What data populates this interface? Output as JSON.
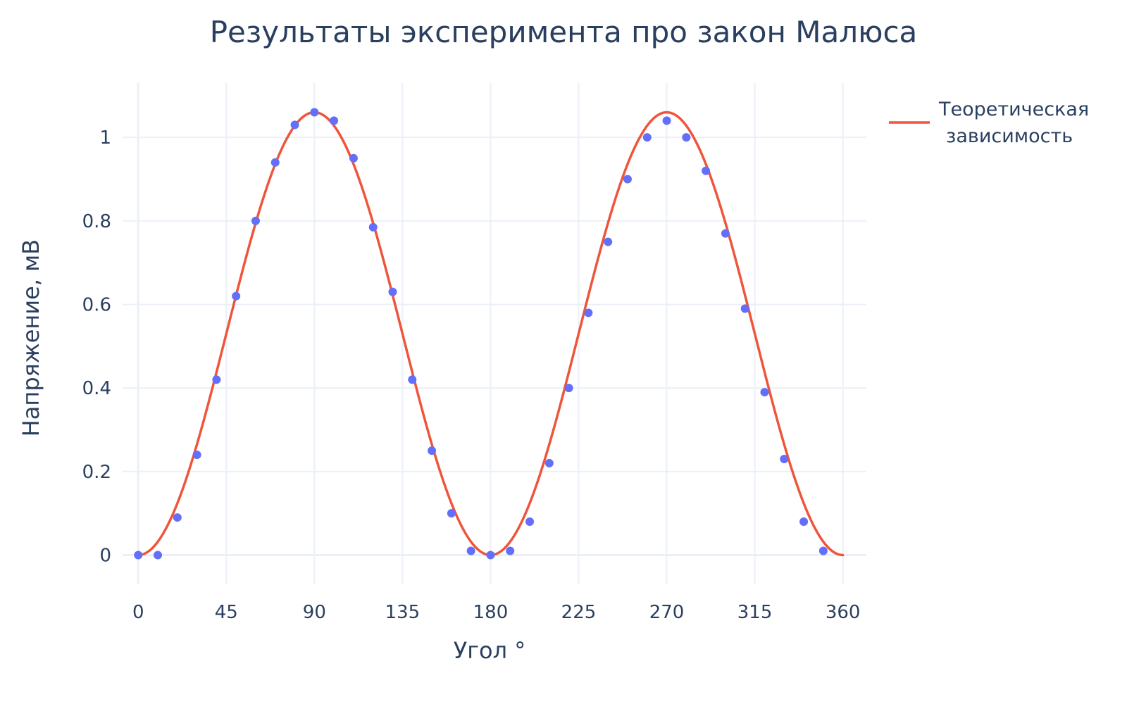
{
  "chart_data": {
    "type": "scatter",
    "title": "Результаты эксперимента про закон Малюса",
    "xlabel": "Угол °",
    "ylabel": "Напряжение, мВ",
    "xlim": [
      -8,
      372
    ],
    "ylim": [
      -0.07,
      1.13
    ],
    "x_ticks": [
      0,
      45,
      90,
      135,
      180,
      225,
      270,
      315,
      360
    ],
    "y_ticks": [
      0,
      0.2,
      0.4,
      0.6,
      0.8,
      1
    ],
    "tick_labels_x": [
      "0",
      "45",
      "90",
      "135",
      "180",
      "225",
      "270",
      "315",
      "360"
    ],
    "tick_labels_y": [
      "0",
      "0.2",
      "0.4",
      "0.6",
      "0.8",
      "1"
    ],
    "grid": true,
    "legend_position": "top-right",
    "series": [
      {
        "type": "scatter",
        "color": "#636efa",
        "x": [
          0,
          10,
          20,
          30,
          40,
          50,
          60,
          70,
          80,
          90,
          100,
          110,
          120,
          130,
          140,
          150,
          160,
          170,
          180,
          190,
          200,
          210,
          220,
          230,
          240,
          250,
          260,
          270,
          280,
          290,
          300,
          310,
          320,
          330,
          340,
          350
        ],
        "y": [
          0,
          0,
          0.09,
          0.24,
          0.42,
          0.62,
          0.8,
          0.94,
          1.03,
          1.06,
          1.04,
          0.95,
          0.785,
          0.63,
          0.42,
          0.25,
          0.1,
          0.01,
          0,
          0.01,
          0.08,
          0.22,
          0.4,
          0.58,
          0.75,
          0.9,
          1.0,
          1.04,
          1.0,
          0.92,
          0.77,
          0.59,
          0.39,
          0.23,
          0.08,
          0.01
        ]
      },
      {
        "type": "line",
        "name_lines": [
          "Теоретическая",
          "зависимость"
        ],
        "color": "#ef553b",
        "function": "1.06 * sin^2(x)",
        "amplitude": 1.06,
        "x_range": [
          0,
          360
        ]
      }
    ]
  }
}
